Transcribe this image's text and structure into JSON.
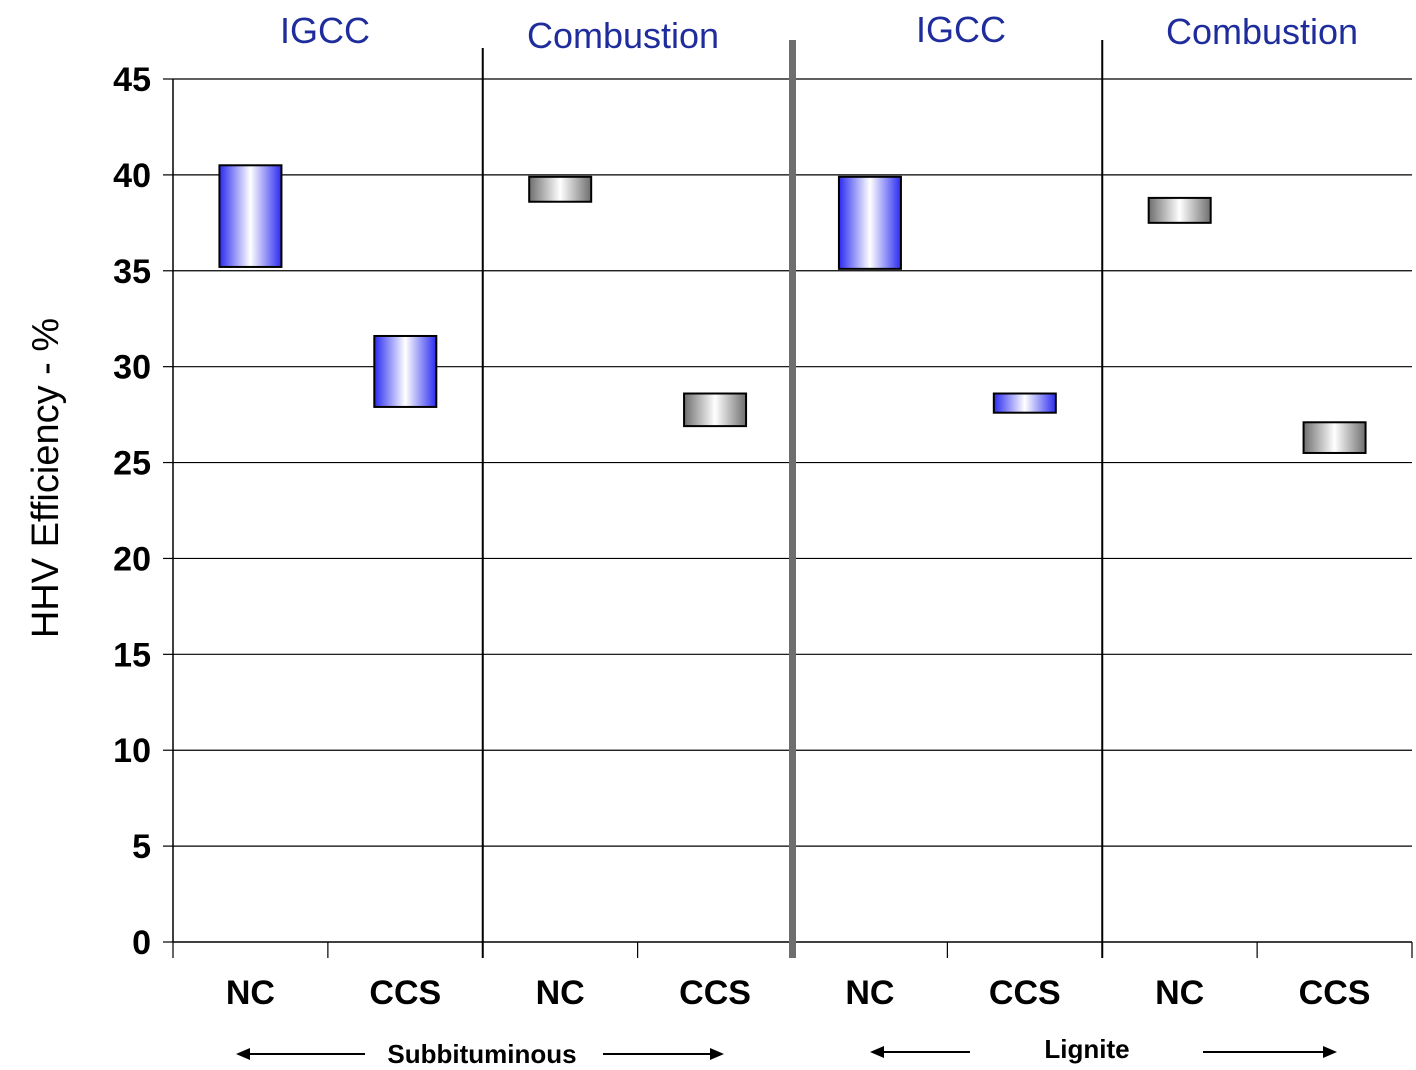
{
  "chart_data": {
    "type": "bar",
    "subtype": "floating-range",
    "ylabel": "HHV Efficiency - %",
    "ylim": [
      0,
      45
    ],
    "yticks": [
      0,
      5,
      10,
      15,
      20,
      25,
      30,
      35,
      40,
      45
    ],
    "grid": true,
    "categories": [
      "NC",
      "CCS",
      "NC",
      "CCS",
      "NC",
      "CCS",
      "NC",
      "CCS"
    ],
    "technology_labels": [
      "IGCC",
      "Combustion",
      "IGCC",
      "Combustion"
    ],
    "coal_labels": [
      "Subbituminous",
      "Lignite"
    ],
    "ranges": [
      {
        "low": 35.2,
        "high": 40.5,
        "tech": "IGCC"
      },
      {
        "low": 27.9,
        "high": 31.6,
        "tech": "IGCC"
      },
      {
        "low": 38.6,
        "high": 39.9,
        "tech": "Combustion"
      },
      {
        "low": 26.9,
        "high": 28.6,
        "tech": "Combustion"
      },
      {
        "low": 35.1,
        "high": 39.9,
        "tech": "IGCC"
      },
      {
        "low": 27.6,
        "high": 28.6,
        "tech": "IGCC"
      },
      {
        "low": 37.5,
        "high": 38.8,
        "tech": "Combustion"
      },
      {
        "low": 25.5,
        "high": 27.1,
        "tech": "Combustion"
      }
    ],
    "colors": {
      "IGCC": "#2b2bf0",
      "Combustion": "#6e6e6e"
    }
  }
}
